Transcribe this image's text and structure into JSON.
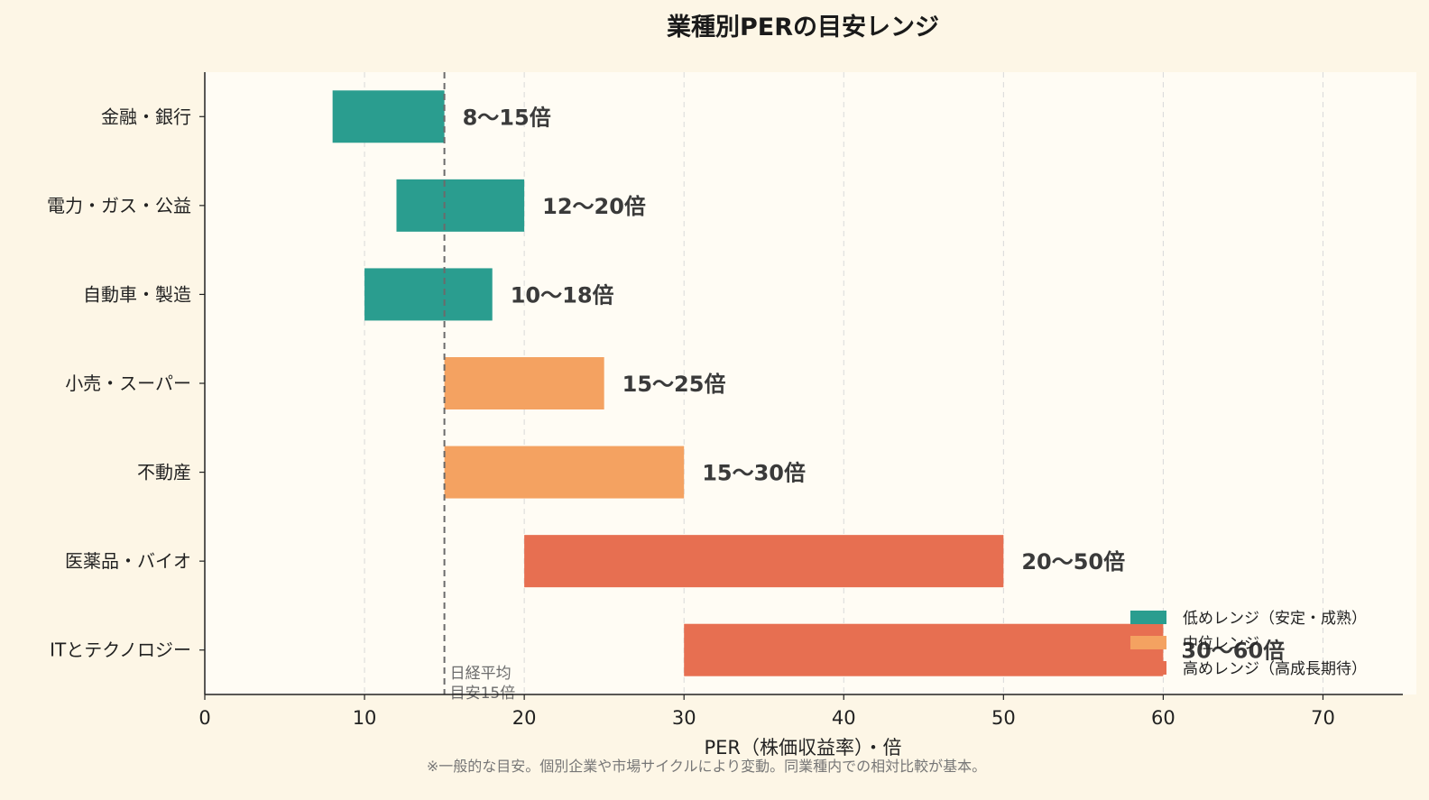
{
  "chart_data": {
    "type": "bar",
    "orientation": "horizontal",
    "title": "業種別PERの目安レンジ",
    "xlabel": "PER（株価収益率）・倍",
    "xlim": [
      0,
      75
    ],
    "xticks": [
      0,
      10,
      20,
      30,
      40,
      50,
      60,
      70
    ],
    "grid": "vertical dashed",
    "categories": [
      "金融・銀行",
      "電力・ガス・公益",
      "自動車・製造",
      "小売・スーパー",
      "不動産",
      "医薬品・バイオ",
      "ITとテクノロジー"
    ],
    "ranges": [
      {
        "category": "金融・銀行",
        "low": 8,
        "high": 15,
        "label": "8〜15倍",
        "group": 0
      },
      {
        "category": "電力・ガス・公益",
        "low": 12,
        "high": 20,
        "label": "12〜20倍",
        "group": 0
      },
      {
        "category": "自動車・製造",
        "low": 10,
        "high": 18,
        "label": "10〜18倍",
        "group": 0
      },
      {
        "category": "小売・スーパー",
        "low": 15,
        "high": 25,
        "label": "15〜25倍",
        "group": 1
      },
      {
        "category": "不動産",
        "low": 15,
        "high": 30,
        "label": "15〜30倍",
        "group": 1
      },
      {
        "category": "医薬品・バイオ",
        "low": 20,
        "high": 50,
        "label": "20〜50倍",
        "group": 2
      },
      {
        "category": "ITとテクノロジー",
        "low": 30,
        "high": 60,
        "label": "30〜60倍",
        "group": 2
      }
    ],
    "groups": [
      {
        "name": "低めレンジ（安定・成熟）",
        "color": "#2a9d8f"
      },
      {
        "name": "中位レンジ",
        "color": "#f4a261"
      },
      {
        "name": "高めレンジ（高成長期待）",
        "color": "#e76f51"
      }
    ],
    "reference_line": {
      "x": 15,
      "label_lines": [
        "日経平均",
        "目安15倍"
      ]
    },
    "legend_position": "bottom-right",
    "footnote": "※一般的な目安。個別企業や市場サイクルにより変動。同業種内での相対比較が基本。"
  }
}
